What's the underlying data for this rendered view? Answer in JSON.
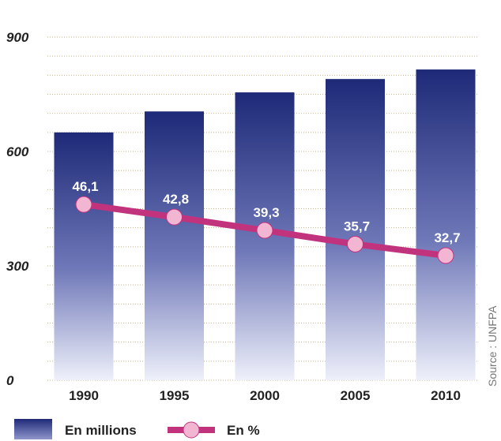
{
  "chart_data": {
    "type": "bar",
    "categories": [
      "1990",
      "1995",
      "2000",
      "2005",
      "2010"
    ],
    "series": [
      {
        "name": "En millions",
        "type": "bar",
        "values": [
          650,
          705,
          755,
          790,
          815
        ]
      },
      {
        "name": "En %",
        "type": "line",
        "values": [
          46.1,
          42.8,
          39.3,
          35.7,
          32.7
        ],
        "labels": [
          "46,1",
          "42,8",
          "39,3",
          "35,7",
          "32,7"
        ]
      }
    ],
    "yticks": [
      "0",
      "300",
      "600",
      "900"
    ],
    "ylim": [
      0,
      900
    ],
    "grid": true,
    "legend": "bottom-left",
    "source": "Source : UNFPA",
    "colors": {
      "bar_top": "#1e2a78",
      "bar_bottom": "#eef0fa",
      "line": "#c2337e",
      "marker": "#f2b6d2",
      "grid": "#c9b68a"
    }
  }
}
